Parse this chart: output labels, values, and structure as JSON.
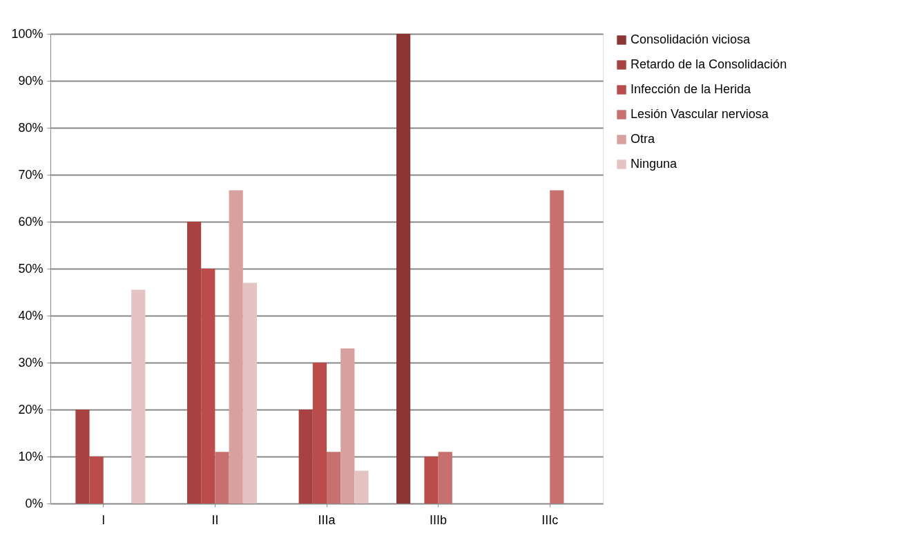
{
  "chart_data": {
    "type": "bar",
    "categories": [
      "I",
      "II",
      "IIIa",
      "IIIb",
      "IIIc"
    ],
    "series": [
      {
        "name": "Consolidación viciosa",
        "color": "#8b3535",
        "values": [
          0,
          0,
          0,
          100,
          0
        ]
      },
      {
        "name": "Retardo de la Consolidación",
        "color": "#a84242",
        "values": [
          20,
          60,
          20,
          0,
          0
        ]
      },
      {
        "name": "Infección de la Herida",
        "color": "#bb4c4c",
        "values": [
          10,
          50,
          30,
          10,
          0
        ]
      },
      {
        "name": "Lesión Vascular nerviosa",
        "color": "#c87070",
        "values": [
          0,
          11,
          11,
          11,
          66.7
        ]
      },
      {
        "name": "Otra",
        "color": "#d9a0a0",
        "values": [
          0,
          66.7,
          33,
          0,
          0
        ]
      },
      {
        "name": "Ninguna",
        "color": "#e6c3c3",
        "values": [
          45.5,
          47,
          7,
          0,
          0
        ]
      }
    ],
    "ylim": [
      0,
      100
    ],
    "yticks": [
      {
        "value": 0,
        "label": "0%"
      },
      {
        "value": 10,
        "label": "10%"
      },
      {
        "value": 20,
        "label": "20%"
      },
      {
        "value": 30,
        "label": "30%"
      },
      {
        "value": 40,
        "label": "40%"
      },
      {
        "value": 50,
        "label": "50%"
      },
      {
        "value": 60,
        "label": "60%"
      },
      {
        "value": 70,
        "label": "70%"
      },
      {
        "value": 80,
        "label": "80%"
      },
      {
        "value": 90,
        "label": "90%"
      },
      {
        "value": 100,
        "label": "100%"
      }
    ],
    "grid": "y",
    "legend": "right"
  }
}
